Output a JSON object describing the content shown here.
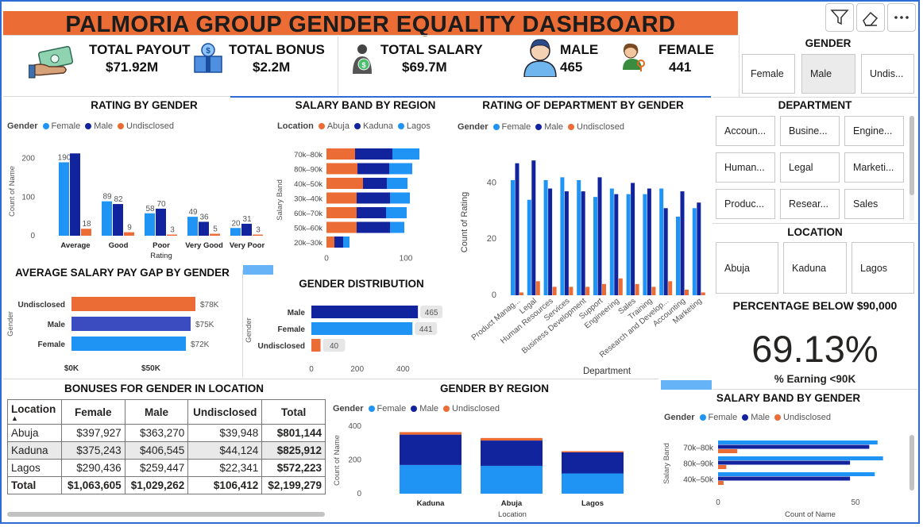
{
  "header": {
    "title": "PALMORIA GROUP GENDER EQUALITY DASHBOARD"
  },
  "toolbar": {
    "icons": [
      "filter-icon",
      "eraser-icon",
      "more-options-icon"
    ]
  },
  "colors": {
    "female": "#1f94f4",
    "male": "#12239e",
    "undisclosed": "#eb6c35",
    "orange_banner": "#eb6c35",
    "avg_male": "#3a4cc0"
  },
  "kpis": [
    {
      "label": "TOTAL PAYOUT",
      "value": "$71.92M",
      "icon": "money-hand-icon"
    },
    {
      "label": "TOTAL BONUS",
      "value": "$2.2M",
      "icon": "bonus-gift-icon"
    },
    {
      "label": "TOTAL SALARY",
      "value": "$69.7M",
      "icon": "salary-person-icon"
    },
    {
      "label": "MALE",
      "value": "465",
      "icon": "male-avatar-icon"
    },
    {
      "label": "FEMALE",
      "value": "441",
      "icon": "female-avatar-icon"
    }
  ],
  "gender_slicer": {
    "title": "GENDER",
    "options": [
      "Female",
      "Male",
      "Undis..."
    ],
    "selected": "Male"
  },
  "department_slicer": {
    "title": "DEPARTMENT",
    "options": [
      "Accoun...",
      "Busine...",
      "Engine...",
      "Human...",
      "Legal",
      "Marketi...",
      "Produc...",
      "Resear...",
      "Sales"
    ]
  },
  "location_slicer": {
    "title": "LOCATION",
    "options": [
      "Abuja",
      "Kaduna",
      "Lagos"
    ]
  },
  "percent_card": {
    "title": "PERCENTAGE BELOW $90,000",
    "value": "69.13%",
    "label": "% Earning <90K"
  },
  "legend_gender": {
    "label": "Gender",
    "items": [
      "Female",
      "Male",
      "Undisclosed"
    ]
  },
  "legend_location": {
    "label": "Location",
    "items": [
      "Abuja",
      "Kaduna",
      "Lagos"
    ]
  },
  "bonus_table": {
    "title": "BONUSES FOR GENDER IN LOCATION",
    "headers": [
      "Location",
      "Female",
      "Male",
      "Undisclosed",
      "Total"
    ],
    "rows": [
      [
        "Abuja",
        "$397,927",
        "$363,270",
        "$39,948",
        "$801,144"
      ],
      [
        "Kaduna",
        "$375,243",
        "$406,545",
        "$44,124",
        "$825,912"
      ],
      [
        "Lagos",
        "$290,436",
        "$259,447",
        "$22,341",
        "$572,223"
      ]
    ],
    "total": [
      "Total",
      "$1,063,605",
      "$1,029,262",
      "$106,412",
      "$2,199,279"
    ]
  },
  "chart_data": [
    {
      "id": "rating_by_gender",
      "type": "bar",
      "title": "RATING BY GENDER",
      "xlabel": "Rating",
      "ylabel": "Count of Name",
      "categories": [
        "Average",
        "Good",
        "Poor",
        "Very Good",
        "Very Poor"
      ],
      "series": [
        {
          "name": "Female",
          "values": [
            190,
            89,
            58,
            49,
            20
          ]
        },
        {
          "name": "Male",
          "values": [
            213,
            82,
            70,
            36,
            31
          ]
        },
        {
          "name": "Undisclosed",
          "values": [
            18,
            9,
            3,
            5,
            3
          ]
        }
      ],
      "data_labels": [
        [
          "190",
          "",
          "18"
        ],
        [
          "89",
          "82",
          "9"
        ],
        [
          "58",
          "70",
          "3"
        ],
        [
          "49",
          "36",
          "5"
        ],
        [
          "20",
          "31",
          "3"
        ]
      ],
      "yticks": [
        "0",
        "100",
        "200"
      ],
      "ylim": [
        0,
        230
      ]
    },
    {
      "id": "salary_band_by_region",
      "type": "bar",
      "orientation": "horizontal",
      "stacked": true,
      "title": "SALARY BAND BY REGION",
      "ylabel": "Salary Band",
      "categories": [
        "70k–80k",
        "80k–90k",
        "40k–50k",
        "30k–40k",
        "60k–70k",
        "50k–60k",
        "20k–30k"
      ],
      "series": [
        {
          "name": "Abuja",
          "values": [
            36,
            39,
            46,
            38,
            38,
            38,
            10
          ]
        },
        {
          "name": "Kaduna",
          "values": [
            47,
            40,
            30,
            42,
            37,
            42,
            11
          ]
        },
        {
          "name": "Lagos",
          "values": [
            34,
            29,
            26,
            25,
            26,
            18,
            8
          ]
        }
      ],
      "xticks": [
        "0",
        "100"
      ],
      "xlim": [
        0,
        130
      ]
    },
    {
      "id": "rating_of_department_by_gender",
      "type": "bar",
      "title": "RATING OF DEPARTMENT BY GENDER",
      "xlabel": "Department",
      "ylabel": "Count of Rating",
      "categories": [
        "Product Manag...",
        "Legal",
        "Human Resources",
        "Services",
        "Business Development",
        "Support",
        "Engineering",
        "Sales",
        "Training",
        "Research and Develop...",
        "Accounting",
        "Marketing"
      ],
      "series": [
        {
          "name": "Female",
          "values": [
            41,
            34,
            41,
            42,
            41,
            35,
            38,
            36,
            36,
            38,
            28,
            31
          ]
        },
        {
          "name": "Male",
          "values": [
            47,
            48,
            38,
            37,
            37,
            42,
            36,
            40,
            38,
            31,
            37,
            33
          ]
        },
        {
          "name": "Undisclosed",
          "values": [
            1,
            5,
            3,
            3,
            3,
            4,
            6,
            4,
            3,
            5,
            2,
            1
          ]
        }
      ],
      "yticks": [
        "0",
        "20",
        "40"
      ],
      "ylim": [
        0,
        52
      ]
    },
    {
      "id": "average_salary_pay_gap",
      "type": "bar",
      "orientation": "horizontal",
      "title": "AVERAGE SALARY PAY GAP BY GENDER",
      "ylabel": "Gender",
      "categories": [
        "Undisclosed",
        "Male",
        "Female"
      ],
      "values": [
        78,
        75,
        72
      ],
      "data_labels": [
        "$78K",
        "$75K",
        "$72K"
      ],
      "xticks": [
        "$0K",
        "$50K"
      ],
      "xlim": [
        0,
        95
      ]
    },
    {
      "id": "gender_distribution",
      "type": "bar",
      "orientation": "horizontal",
      "title": "GENDER DISTRIBUTION",
      "ylabel": "Gender",
      "categories": [
        "Male",
        "Female",
        "Undisclosed"
      ],
      "values": [
        465,
        441,
        40
      ],
      "data_labels": [
        "465",
        "441",
        "40"
      ],
      "xticks": [
        "0",
        "200",
        "400"
      ],
      "xlim": [
        0,
        520
      ]
    },
    {
      "id": "gender_by_region",
      "type": "bar",
      "stacked": true,
      "title": "GENDER BY REGION",
      "xlabel": "Location",
      "ylabel": "Count of Name",
      "categories": [
        "Kaduna",
        "Abuja",
        "Lagos"
      ],
      "series": [
        {
          "name": "Female",
          "values": [
            170,
            165,
            120
          ]
        },
        {
          "name": "Male",
          "values": [
            180,
            150,
            125
          ]
        },
        {
          "name": "Undisclosed",
          "values": [
            15,
            15,
            7
          ]
        }
      ],
      "yticks": [
        "0",
        "200",
        "400"
      ],
      "ylim": [
        0,
        400
      ]
    },
    {
      "id": "salary_band_by_gender",
      "type": "bar",
      "orientation": "horizontal",
      "title": "SALARY BAND BY GENDER",
      "xlabel": "Count of Name",
      "ylabel": "Salary Band",
      "categories": [
        "70k–80k",
        "80k–90k",
        "40k–50k"
      ],
      "series": [
        {
          "name": "Female",
          "values": [
            58,
            60,
            57
          ]
        },
        {
          "name": "Male",
          "values": [
            55,
            48,
            48
          ]
        },
        {
          "name": "Undisclosed",
          "values": [
            7,
            3,
            2
          ]
        }
      ],
      "xticks": [
        "0",
        "50"
      ],
      "xlim": [
        0,
        65
      ]
    }
  ]
}
